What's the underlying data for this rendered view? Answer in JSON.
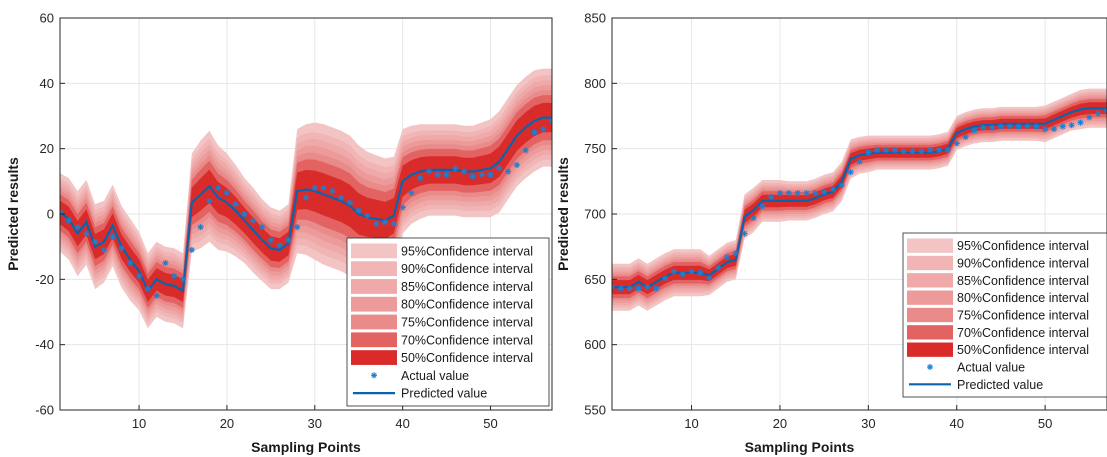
{
  "chart_data": [
    {
      "type": "area",
      "xlabel": "Sampling Points",
      "ylabel": "Predicted results",
      "xlim": [
        1,
        57
      ],
      "ylim": [
        -60,
        60
      ],
      "xticks": [
        10,
        20,
        30,
        40,
        50
      ],
      "yticks": [
        -60,
        -40,
        -20,
        0,
        20,
        40,
        60
      ],
      "grid": true,
      "legend_position": "bottom-right",
      "x": [
        1,
        2,
        3,
        4,
        5,
        6,
        7,
        8,
        9,
        10,
        11,
        12,
        13,
        14,
        15,
        16,
        17,
        18,
        19,
        20,
        21,
        22,
        23,
        24,
        25,
        26,
        27,
        28,
        29,
        30,
        31,
        32,
        33,
        34,
        35,
        36,
        37,
        38,
        39,
        40,
        41,
        42,
        43,
        44,
        45,
        46,
        47,
        48,
        49,
        50,
        51,
        52,
        53,
        54,
        55,
        56,
        57
      ],
      "predicted": [
        0.5,
        -1.5,
        -6,
        -2.5,
        -10,
        -8.5,
        -3.5,
        -10,
        -14,
        -17.5,
        -23.5,
        -20,
        -21.5,
        -22,
        -23.5,
        3.5,
        6,
        8.5,
        5,
        3.5,
        1,
        -2,
        -5,
        -8,
        -10.5,
        -11,
        -9,
        7,
        7.5,
        7,
        6,
        5,
        4,
        2.5,
        0,
        -1,
        -1.5,
        -2,
        -0.5,
        10,
        12,
        13,
        13.5,
        13.5,
        13.5,
        13.5,
        13,
        13,
        13.5,
        14,
        16,
        20,
        24,
        26.5,
        28.5,
        29.5,
        29.5
      ],
      "actual": [
        0.5,
        -2,
        -4,
        -6,
        -8.5,
        -11,
        -7,
        -10.5,
        -15,
        -19,
        -23,
        -25,
        -15,
        -19,
        -20,
        -11,
        -4,
        4,
        8,
        6.5,
        3,
        0,
        -2,
        -4,
        -8,
        -9.5,
        -8,
        -4,
        5,
        8,
        8,
        7,
        5,
        3.5,
        1,
        -0.5,
        -3,
        -2.5,
        -3,
        2,
        6.5,
        11,
        13,
        12,
        12,
        14,
        13,
        11.5,
        12,
        12,
        14,
        13,
        15,
        19.5,
        25,
        26,
        28.5
      ],
      "halfwidth_95": [
        12,
        12.5,
        13,
        13,
        13,
        12.5,
        12.5,
        12.5,
        12.5,
        12,
        11.5,
        11.5,
        11.5,
        11.5,
        11.5,
        15,
        16.5,
        17,
        16,
        15,
        14,
        13,
        13,
        12.5,
        12.5,
        12,
        12,
        19,
        20,
        21,
        21.5,
        21.5,
        21.5,
        21.5,
        21,
        20,
        19.5,
        19,
        18,
        16,
        15,
        14.5,
        14,
        14,
        14,
        14,
        14,
        14,
        14.5,
        15,
        15.5,
        15.5,
        15.5,
        15.5,
        15.5,
        15,
        15
      ],
      "series": [
        {
          "name": "95%Confidence interval",
          "color": "#f2c4c3"
        },
        {
          "name": "90%Confidence interval",
          "color": "#f0b5b4"
        },
        {
          "name": "85%Confidence interval",
          "color": "#eea9a8"
        },
        {
          "name": "80%Confidence interval",
          "color": "#ec9b9a"
        },
        {
          "name": "75%Confidence interval",
          "color": "#e88b8a"
        },
        {
          "name": "70%Confidence interval",
          "color": "#e36362"
        },
        {
          "name": "50%Confidence interval",
          "color": "#d92b2a"
        },
        {
          "name": "Actual value",
          "color": "#1f7fd0"
        },
        {
          "name": "Predicted value",
          "color": "#0a64ad"
        }
      ]
    },
    {
      "type": "area",
      "xlabel": "Sampling Points",
      "ylabel": "Predicted results",
      "xlim": [
        1,
        57
      ],
      "ylim": [
        550,
        850
      ],
      "xticks": [
        10,
        20,
        30,
        40,
        50
      ],
      "yticks": [
        550,
        600,
        650,
        700,
        750,
        800,
        850
      ],
      "grid": true,
      "legend_position": "bottom-right",
      "x": [
        1,
        2,
        3,
        4,
        5,
        6,
        7,
        8,
        9,
        10,
        11,
        12,
        13,
        14,
        15,
        16,
        17,
        18,
        19,
        20,
        21,
        22,
        23,
        24,
        25,
        26,
        27,
        28,
        29,
        30,
        31,
        32,
        33,
        34,
        35,
        36,
        37,
        38,
        39,
        40,
        41,
        42,
        43,
        44,
        45,
        46,
        47,
        48,
        49,
        50,
        51,
        52,
        53,
        54,
        55,
        56,
        57
      ],
      "predicted": [
        644,
        644,
        644,
        648,
        644,
        648,
        652,
        655,
        655,
        655,
        655,
        653,
        658,
        663,
        665,
        698,
        703,
        710,
        710,
        710,
        710,
        710,
        710,
        712,
        715,
        717,
        725,
        742,
        745,
        746,
        747,
        747,
        747,
        747,
        747,
        747,
        747,
        748,
        750,
        762,
        765,
        767,
        768,
        768,
        769,
        769,
        769,
        769,
        769,
        769,
        772,
        775,
        778,
        780,
        781,
        781,
        781
      ],
      "actual": [
        644,
        643,
        643,
        643,
        644,
        643,
        651,
        656,
        654,
        656,
        655,
        651,
        659,
        667,
        670,
        685,
        697,
        706,
        713,
        716,
        716,
        716,
        716,
        716,
        717,
        719,
        722,
        732,
        740,
        747,
        749,
        749,
        749,
        748,
        748,
        748,
        749,
        749,
        749,
        754,
        759,
        764,
        766,
        766,
        767,
        767,
        767,
        767,
        767,
        765,
        765,
        767,
        768,
        770,
        774,
        777,
        779
      ],
      "halfwidth_95": [
        18,
        18,
        18,
        18,
        18,
        18,
        18,
        18,
        18,
        18,
        18,
        15,
        15,
        15,
        15,
        17,
        17,
        16,
        16,
        16,
        15,
        15,
        15,
        15,
        15,
        15,
        15,
        15,
        14,
        14,
        13,
        13,
        13,
        13,
        13,
        13,
        13,
        13,
        13,
        13,
        13,
        13,
        13,
        13,
        13,
        13,
        13,
        13,
        13,
        14,
        14,
        14,
        14,
        15,
        15,
        15,
        15
      ],
      "series": [
        {
          "name": "95%Confidence interval",
          "color": "#f2c4c3"
        },
        {
          "name": "90%Confidence interval",
          "color": "#f0b5b4"
        },
        {
          "name": "85%Confidence interval",
          "color": "#eea9a8"
        },
        {
          "name": "80%Confidence interval",
          "color": "#ec9b9a"
        },
        {
          "name": "75%Confidence interval",
          "color": "#e88b8a"
        },
        {
          "name": "70%Confidence interval",
          "color": "#e36362"
        },
        {
          "name": "50%Confidence interval",
          "color": "#d92b2a"
        },
        {
          "name": "Actual value",
          "color": "#1f7fd0"
        },
        {
          "name": "Predicted value",
          "color": "#0a64ad"
        }
      ]
    }
  ],
  "confidence_levels": [
    0.95,
    0.9,
    0.85,
    0.8,
    0.75,
    0.7,
    0.5
  ],
  "band_scale": [
    1.0,
    0.86,
    0.76,
    0.66,
    0.56,
    0.46,
    0.3
  ]
}
